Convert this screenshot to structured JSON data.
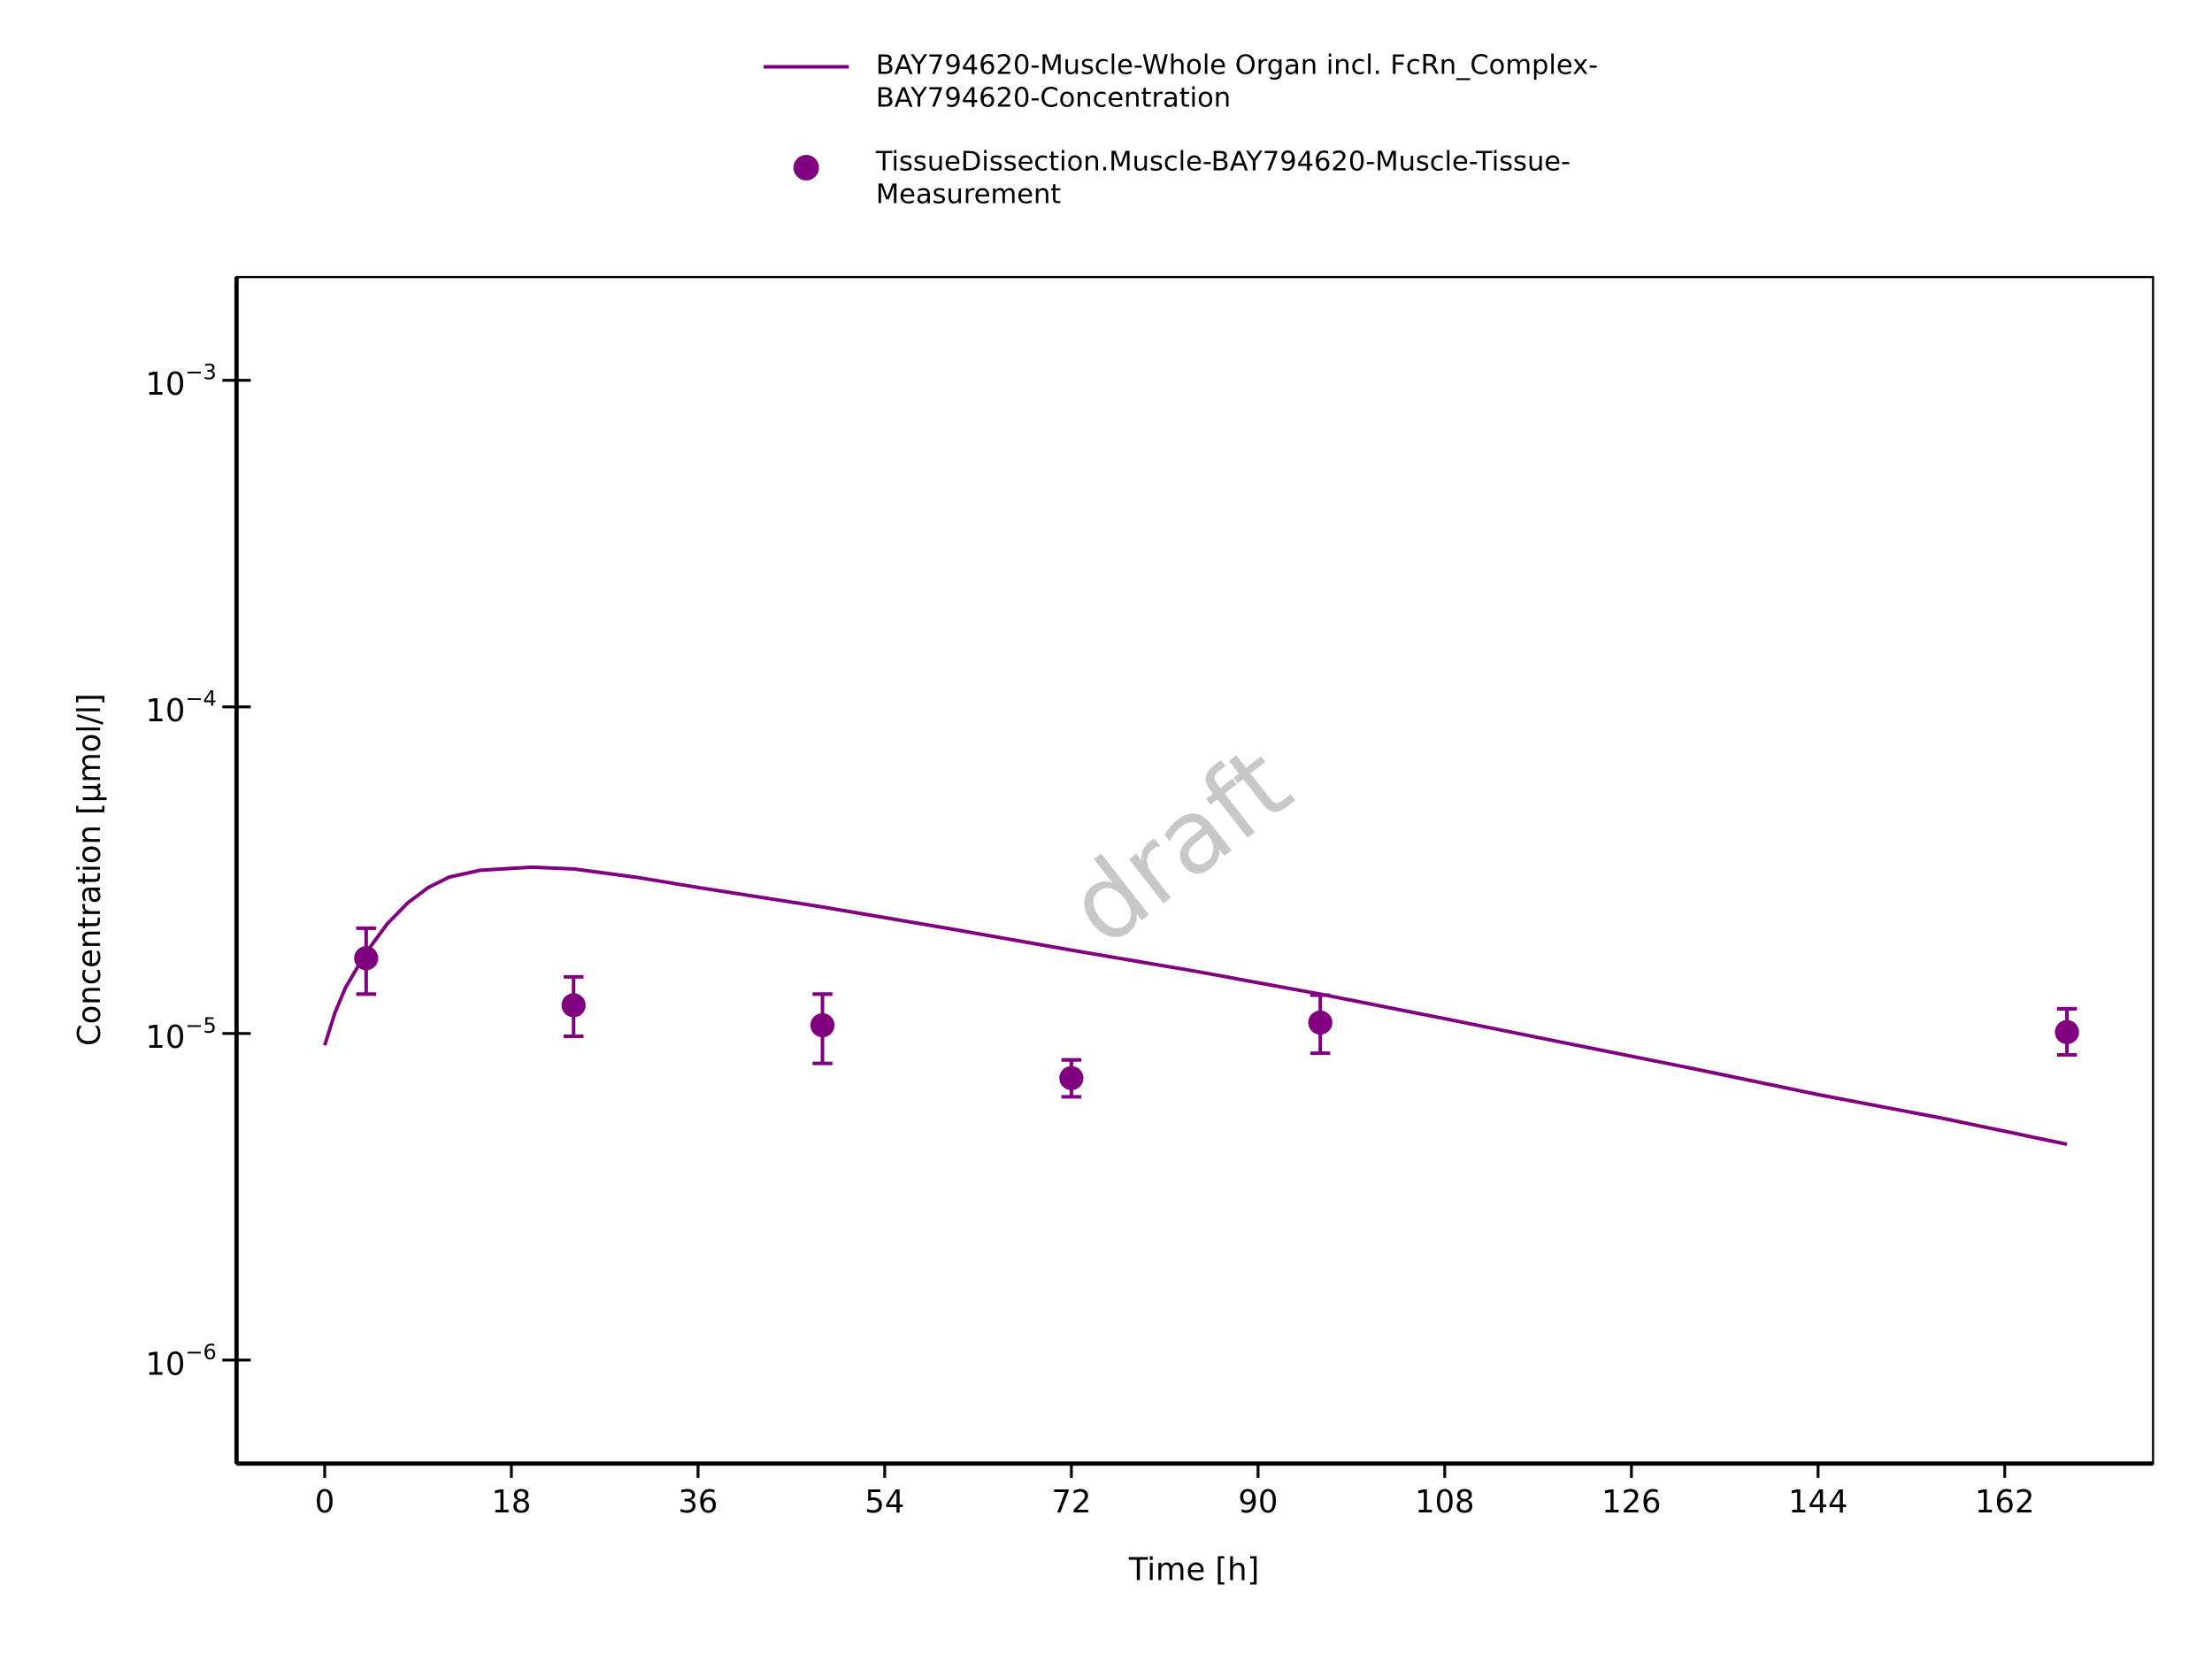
{
  "chart_data": {
    "type": "line",
    "annotation": "draft",
    "xlabel": "Time [h]",
    "ylabel": "Concentration [µmol/l]",
    "xlim": [
      -8.5,
      176.3
    ],
    "ylim": [
      4.82e-07,
      0.00207
    ],
    "log_y": true,
    "grid": false,
    "legend": "top",
    "xticks": [
      0,
      18,
      36,
      54,
      72,
      90,
      108,
      126,
      144,
      162
    ],
    "yticks": [
      {
        "value": 1e-06,
        "label": "10−6"
      },
      {
        "value": 1e-05,
        "label": "10−5"
      },
      {
        "value": 0.0001,
        "label": "10−4"
      },
      {
        "value": 0.001,
        "label": "10−3"
      }
    ],
    "series": [
      {
        "name": "BAY794620-Muscle-Whole Organ incl. FcRn_Complex-BAY794620-Concentration",
        "color": "#800080",
        "kind": "line",
        "x": [
          0,
          1,
          2,
          4,
          6,
          8,
          10,
          12,
          15,
          20,
          24,
          30,
          36,
          48,
          60,
          72,
          84,
          96,
          108,
          120,
          132,
          144,
          156,
          168
        ],
        "values": [
          9.2e-06,
          1.16e-05,
          1.38e-05,
          1.77e-05,
          2.16e-05,
          2.51e-05,
          2.8e-05,
          3.01e-05,
          3.16e-05,
          3.23e-05,
          3.19e-05,
          3.01e-05,
          2.8e-05,
          2.44e-05,
          2.1e-05,
          1.8e-05,
          1.55e-05,
          1.32e-05,
          1.11e-05,
          9.3e-06,
          7.8e-06,
          6.5e-06,
          5.5e-06,
          4.58e-06
        ]
      },
      {
        "name": "TissueDissection.Muscle-BAY794620-Muscle-Tissue-Measurement",
        "color": "#800080",
        "kind": "scatter",
        "x": [
          4,
          24,
          48,
          72,
          96,
          168
        ],
        "values": [
          1.7e-05,
          1.22e-05,
          1.06e-05,
          7.3e-06,
          1.08e-05,
          1.01e-05
        ],
        "upper": [
          2.1e-05,
          1.49e-05,
          1.32e-05,
          8.3e-06,
          1.31e-05,
          1.19e-05
        ],
        "lower": [
          1.32e-05,
          9.8e-06,
          8.1e-06,
          6.4e-06,
          8.7e-06,
          8.6e-06
        ]
      }
    ]
  }
}
